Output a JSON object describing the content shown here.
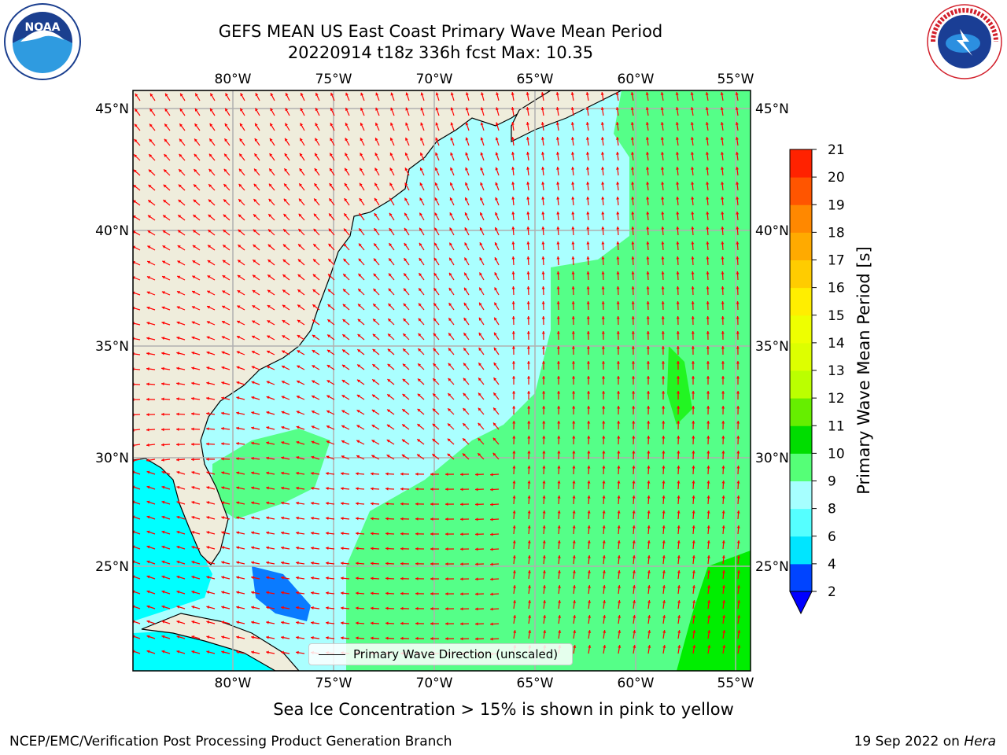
{
  "title": {
    "line1": "GEFS MEAN US East Coast Primary Wave Mean Period",
    "line2": "20220914 t18z 336h fcst   Max: 10.35"
  },
  "logos": {
    "left": "NOAA",
    "right": "NATIONAL WEATHER SERVICE"
  },
  "map": {
    "lon_ticks": [
      "80°W",
      "75°W",
      "70°W",
      "65°W",
      "60°W",
      "55°W"
    ],
    "lat_ticks": [
      "45°N",
      "40°N",
      "35°N",
      "30°N",
      "25°N"
    ],
    "legend_label": "Primary Wave Direction (unscaled)",
    "colors": {
      "land": "#efeddc",
      "coast": "#000000",
      "grid": "#b0b0b0",
      "arrow": "#ff0000",
      "band_2_4": "#0a7bff",
      "band_4_6": "#00ffff",
      "band_6_8": "#55ffff",
      "band_8_9": "#aaffff",
      "band_9_10": "#55ff88",
      "band_10_11": "#00ee00"
    }
  },
  "colorbar": {
    "label": "Primary Wave Mean Period [s]",
    "ticks": [
      "2",
      "4",
      "6",
      "8",
      "9",
      "10",
      "11",
      "12",
      "13",
      "14",
      "15",
      "16",
      "17",
      "18",
      "19",
      "20",
      "21"
    ],
    "colors": [
      "#0044ff",
      "#00e5ff",
      "#55ffff",
      "#a6ffff",
      "#55ff77",
      "#00dd00",
      "#66ee00",
      "#bbff00",
      "#ddff00",
      "#eeff00",
      "#ffee00",
      "#ffcc00",
      "#ffaa00",
      "#ff8800",
      "#ff5500",
      "#ff2200"
    ]
  },
  "ice_note": "Sea Ice Concentration > 15% is shown in pink to yellow",
  "footer": {
    "left": "NCEP/EMC/Verification Post Processing Product Generation Branch",
    "right_date": "19 Sep 2022 on ",
    "right_machine": "Hera"
  }
}
